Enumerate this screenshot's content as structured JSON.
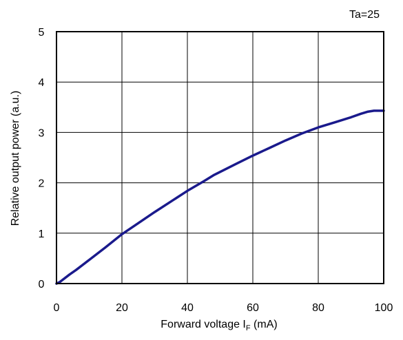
{
  "chart_data": {
    "type": "line",
    "title": "",
    "annotation": "Ta=25",
    "xlabel": "Forward voltage I",
    "xlabel_subscript": "F",
    "xlabel_unit": " (mA)",
    "ylabel": "Relative output power (a.u.)",
    "xlim": [
      0,
      100
    ],
    "ylim": [
      0,
      5
    ],
    "x_ticks": [
      0,
      20,
      40,
      60,
      80,
      100
    ],
    "y_ticks": [
      0,
      1,
      2,
      3,
      4,
      5
    ],
    "grid": true,
    "legend": "none",
    "series": [
      {
        "color": "#1a1a8c",
        "x": [
          0,
          1,
          2,
          4,
          6,
          10,
          15,
          20,
          25,
          30,
          35,
          40,
          45,
          48,
          55,
          60,
          65,
          70,
          75,
          80,
          85,
          90,
          93,
          95,
          97,
          100
        ],
        "y": [
          0,
          0.03,
          0.08,
          0.18,
          0.27,
          0.47,
          0.72,
          0.98,
          1.2,
          1.42,
          1.63,
          1.84,
          2.03,
          2.15,
          2.38,
          2.54,
          2.69,
          2.84,
          2.98,
          3.1,
          3.2,
          3.3,
          3.37,
          3.41,
          3.43,
          3.43
        ]
      }
    ]
  }
}
